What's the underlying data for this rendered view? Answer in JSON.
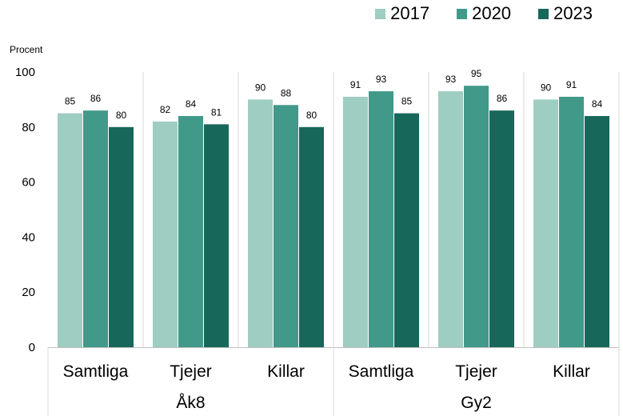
{
  "chart_data": {
    "type": "bar",
    "ylabel": "Procent",
    "ylim": [
      0,
      100
    ],
    "yticks": [
      0,
      20,
      40,
      60,
      80,
      100
    ],
    "grid": false,
    "legend_position": "top-right",
    "groups": [
      "Åk8",
      "Gy2"
    ],
    "categories": [
      "Samtliga",
      "Tjejer",
      "Killar",
      "Samtliga",
      "Tjejer",
      "Killar"
    ],
    "category_groups": [
      "Åk8",
      "Åk8",
      "Åk8",
      "Gy2",
      "Gy2",
      "Gy2"
    ],
    "series": [
      {
        "name": "2017",
        "color": "#9ecdc2",
        "values": [
          85,
          82,
          90,
          91,
          93,
          90
        ]
      },
      {
        "name": "2020",
        "color": "#41998a",
        "values": [
          86,
          84,
          88,
          93,
          95,
          91
        ]
      },
      {
        "name": "2023",
        "color": "#17675b",
        "values": [
          80,
          81,
          80,
          85,
          86,
          84
        ]
      }
    ]
  }
}
